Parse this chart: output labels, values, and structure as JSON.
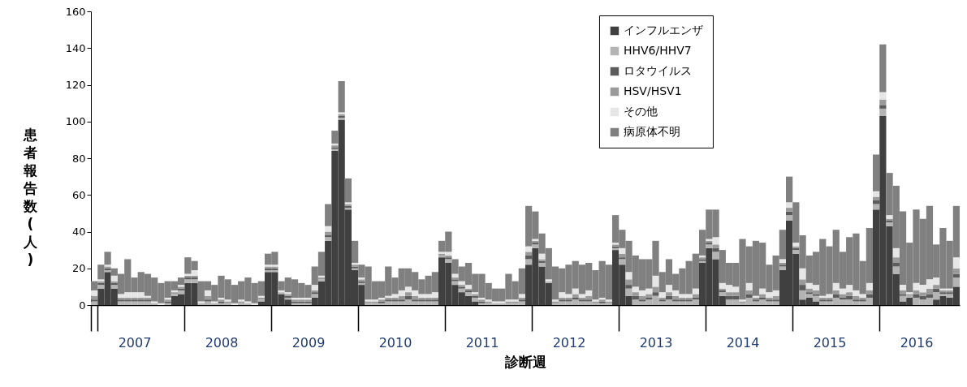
{
  "chart_data": {
    "type": "bar",
    "stacked": true,
    "xlabel": "診断週",
    "ylabel": "患者報告数(人)",
    "ylim": [
      0,
      160
    ],
    "yticks": [
      0,
      20,
      40,
      60,
      80,
      100,
      120,
      140,
      160
    ],
    "legend": "top right",
    "categories": [
      null,
      null,
      null,
      null,
      null,
      null,
      "2007",
      null,
      null,
      null,
      null,
      null,
      null,
      null,
      null,
      null,
      null,
      null,
      null,
      "2008",
      null,
      null,
      null,
      null,
      null,
      null,
      null,
      null,
      null,
      null,
      null,
      null,
      "2009",
      null,
      null,
      null,
      null,
      null,
      null,
      null,
      null,
      null,
      null,
      null,
      null,
      "2010",
      null,
      null,
      null,
      null,
      null,
      null,
      null,
      null,
      null,
      null,
      null,
      null,
      "2011",
      null,
      null,
      null,
      null,
      null,
      null,
      null,
      null,
      null,
      null,
      null,
      null,
      "2012",
      null,
      null,
      null,
      null,
      null,
      null,
      null,
      null,
      null,
      null,
      null,
      null,
      "2013",
      null,
      null,
      null,
      null,
      null,
      null,
      null,
      null,
      null,
      null,
      null,
      null,
      "2014",
      null,
      null,
      null,
      null,
      null,
      null,
      null,
      null,
      null,
      null,
      null,
      null,
      "2015",
      null,
      null,
      null,
      null,
      null,
      null,
      null,
      null,
      null,
      null,
      null,
      null,
      "2016",
      null,
      null,
      null,
      null,
      null,
      null
    ],
    "series": [
      {
        "name": "インフルエンザ",
        "color": "#404040",
        "values": [
          0,
          9,
          18,
          9,
          0,
          0,
          0,
          0,
          0,
          0,
          0,
          0,
          5,
          6,
          12,
          12,
          0,
          0,
          0,
          0,
          0,
          0,
          0,
          0,
          0,
          2,
          18,
          18,
          6,
          3,
          0,
          0,
          0,
          4,
          13,
          35,
          84,
          101,
          52,
          19,
          11,
          0,
          0,
          0,
          0,
          0,
          0,
          0,
          0,
          0,
          0,
          0,
          26,
          23,
          11,
          7,
          5,
          2,
          0,
          0,
          0,
          0,
          0,
          0,
          0,
          22,
          31,
          21,
          12,
          0,
          0,
          0,
          0,
          0,
          0,
          0,
          0,
          0,
          30,
          22,
          5,
          0,
          0,
          0,
          0,
          0,
          0,
          0,
          0,
          0,
          0,
          23,
          31,
          25,
          5,
          0,
          0,
          0,
          0,
          0,
          0,
          0,
          0,
          19,
          46,
          28,
          3,
          4,
          2,
          0,
          0,
          0,
          0,
          0,
          0,
          0,
          0,
          52,
          103,
          43,
          17,
          2,
          4,
          0,
          0,
          0,
          3,
          5,
          4,
          10
        ]
      },
      {
        "name": "HHV6/HHV7",
        "color": "#b4b4b4",
        "values": [
          2,
          2,
          1,
          2,
          2,
          2,
          2,
          2,
          2,
          1,
          0,
          1,
          1,
          2,
          2,
          2,
          1,
          2,
          1,
          1,
          1,
          0,
          1,
          1,
          0,
          1,
          1,
          1,
          1,
          1,
          1,
          1,
          1,
          2,
          1,
          2,
          1,
          1,
          1,
          1,
          1,
          1,
          1,
          1,
          2,
          2,
          2,
          3,
          2,
          2,
          2,
          2,
          1,
          2,
          2,
          2,
          2,
          2,
          1,
          1,
          1,
          1,
          1,
          1,
          2,
          3,
          2,
          2,
          1,
          1,
          2,
          2,
          3,
          2,
          2,
          1,
          1,
          1,
          1,
          3,
          4,
          3,
          2,
          3,
          5,
          2,
          3,
          2,
          2,
          2,
          3,
          1,
          2,
          4,
          2,
          3,
          3,
          1,
          4,
          2,
          3,
          2,
          2,
          2,
          3,
          2,
          5,
          2,
          3,
          2,
          2,
          4,
          3,
          3,
          2,
          2,
          4,
          3,
          4,
          2,
          4,
          3,
          1,
          4,
          3,
          4,
          4,
          1,
          2,
          5
        ]
      },
      {
        "name": "ロタウイルス",
        "color": "#5c5c5c",
        "values": [
          1,
          1,
          1,
          1,
          1,
          1,
          1,
          1,
          1,
          0,
          0,
          1,
          0,
          1,
          1,
          1,
          0,
          1,
          0,
          1,
          0,
          0,
          0,
          0,
          0,
          0,
          1,
          1,
          0,
          1,
          1,
          1,
          1,
          1,
          0,
          1,
          1,
          1,
          1,
          1,
          1,
          0,
          0,
          1,
          1,
          1,
          1,
          2,
          1,
          1,
          1,
          1,
          0,
          1,
          1,
          1,
          1,
          1,
          1,
          0,
          0,
          0,
          0,
          0,
          1,
          2,
          1,
          1,
          0,
          0,
          1,
          1,
          1,
          1,
          1,
          0,
          1,
          0,
          1,
          1,
          2,
          2,
          1,
          1,
          2,
          1,
          2,
          1,
          1,
          1,
          1,
          1,
          1,
          2,
          1,
          2,
          2,
          0,
          2,
          1,
          1,
          1,
          1,
          1,
          2,
          1,
          3,
          1,
          1,
          1,
          1,
          2,
          1,
          2,
          1,
          1,
          2,
          2,
          2,
          1,
          2,
          1,
          0,
          2,
          2,
          2,
          2,
          1,
          1,
          2
        ]
      },
      {
        "name": "HSV/HSV1",
        "color": "#9a9a9a",
        "values": [
          2,
          1,
          1,
          1,
          1,
          1,
          1,
          1,
          1,
          0,
          0,
          1,
          1,
          1,
          1,
          1,
          0,
          2,
          0,
          1,
          1,
          0,
          1,
          0,
          0,
          1,
          1,
          1,
          0,
          1,
          1,
          1,
          1,
          1,
          1,
          2,
          1,
          1,
          1,
          1,
          1,
          1,
          1,
          1,
          1,
          1,
          2,
          2,
          2,
          1,
          1,
          1,
          1,
          1,
          1,
          1,
          1,
          1,
          1,
          1,
          0,
          0,
          1,
          1,
          1,
          2,
          1,
          1,
          0,
          1,
          1,
          1,
          2,
          1,
          2,
          1,
          1,
          1,
          1,
          2,
          3,
          2,
          2,
          2,
          3,
          1,
          2,
          2,
          1,
          1,
          2,
          1,
          1,
          2,
          1,
          2,
          2,
          1,
          2,
          1,
          2,
          1,
          2,
          1,
          2,
          1,
          3,
          2,
          2,
          1,
          1,
          2,
          2,
          2,
          2,
          1,
          2,
          2,
          3,
          1,
          3,
          2,
          1,
          2,
          2,
          3,
          2,
          1,
          1,
          3
        ]
      },
      {
        "name": "その他",
        "color": "#e6e6e6",
        "values": [
          3,
          1,
          1,
          3,
          2,
          3,
          3,
          3,
          1,
          1,
          1,
          1,
          1,
          1,
          1,
          3,
          1,
          3,
          1,
          1,
          1,
          1,
          1,
          1,
          1,
          1,
          1,
          1,
          1,
          1,
          1,
          1,
          1,
          3,
          1,
          3,
          1,
          1,
          1,
          1,
          1,
          1,
          1,
          1,
          1,
          2,
          3,
          3,
          3,
          2,
          2,
          3,
          1,
          2,
          2,
          2,
          2,
          1,
          1,
          1,
          1,
          1,
          1,
          1,
          2,
          3,
          1,
          3,
          1,
          1,
          3,
          2,
          3,
          2,
          3,
          1,
          1,
          1,
          1,
          3,
          4,
          3,
          3,
          3,
          6,
          3,
          4,
          3,
          2,
          2,
          3,
          1,
          1,
          4,
          3,
          4,
          3,
          1,
          4,
          1,
          3,
          3,
          3,
          2,
          3,
          2,
          6,
          3,
          3,
          1,
          2,
          4,
          3,
          4,
          3,
          2,
          4,
          3,
          4,
          2,
          5,
          3,
          1,
          4,
          4,
          5,
          4,
          1,
          1,
          6
        ]
      },
      {
        "name": "病原体不明",
        "color": "#808080",
        "values": [
          5,
          8,
          7,
          4,
          11,
          18,
          8,
          11,
          12,
          13,
          11,
          9,
          5,
          4,
          9,
          5,
          11,
          5,
          9,
          12,
          11,
          10,
          10,
          13,
          11,
          8,
          6,
          7,
          5,
          8,
          10,
          8,
          7,
          10,
          13,
          12,
          7,
          17,
          13,
          12,
          7,
          18,
          10,
          9,
          16,
          9,
          12,
          10,
          10,
          8,
          10,
          11,
          6,
          11,
          8,
          8,
          12,
          10,
          13,
          9,
          7,
          7,
          14,
          10,
          14,
          22,
          15,
          11,
          17,
          18,
          13,
          16,
          15,
          16,
          15,
          16,
          20,
          19,
          15,
          10,
          17,
          17,
          17,
          16,
          19,
          11,
          14,
          9,
          14,
          18,
          19,
          14,
          16,
          15,
          18,
          12,
          13,
          33,
          20,
          30,
          25,
          15,
          19,
          16,
          14,
          22,
          18,
          15,
          18,
          31,
          26,
          29,
          20,
          26,
          31,
          18,
          30,
          20,
          26,
          23,
          34,
          40,
          27,
          40,
          36,
          40,
          18,
          33,
          26,
          28
        ]
      }
    ]
  }
}
